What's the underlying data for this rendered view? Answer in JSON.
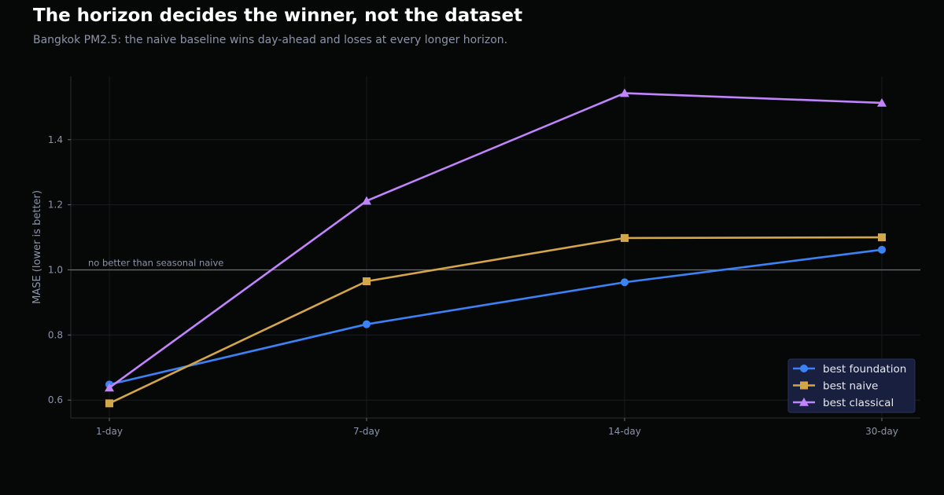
{
  "title": "The horizon decides the winner, not the dataset",
  "subtitle": "Bangkok PM2.5: the naive baseline wins day-ahead and loses at every longer horizon.",
  "chart_data": {
    "type": "line",
    "categories": [
      "1-day",
      "7-day",
      "14-day",
      "30-day"
    ],
    "ylabel": "MASE (lower is better)",
    "xlabel": "",
    "ylim": [
      0.545,
      1.595
    ],
    "yticks": [
      0.6,
      0.8,
      1.0,
      1.2,
      1.4
    ],
    "grid": true,
    "legend_position": "bottom-right",
    "reference_line": {
      "y": 1.0,
      "label": "no better than seasonal naive",
      "color": "#6b6f7a"
    },
    "series": [
      {
        "name": "best foundation",
        "marker": "circle",
        "color": "#3b82f6",
        "values": [
          0.648,
          0.833,
          0.962,
          1.062
        ]
      },
      {
        "name": "best naive",
        "marker": "square",
        "color": "#d4a64a",
        "values": [
          0.59,
          0.965,
          1.098,
          1.1
        ]
      },
      {
        "name": "best classical",
        "marker": "triangle",
        "color": "#c084fc",
        "values": [
          0.638,
          1.212,
          1.543,
          1.513
        ]
      }
    ]
  }
}
